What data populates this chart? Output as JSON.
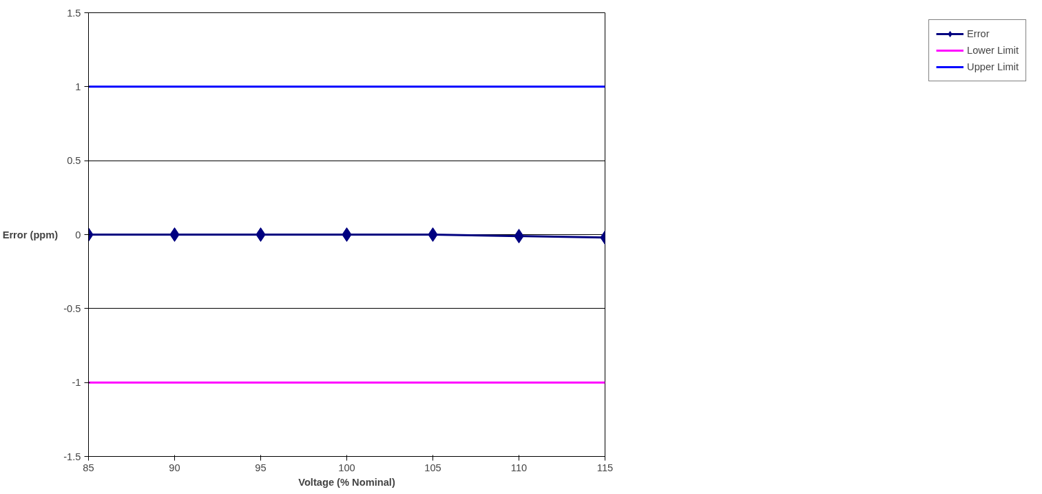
{
  "chart_data": {
    "type": "line",
    "xlabel": "Voltage (% Nominal)",
    "ylabel": "Error (ppm)",
    "x": [
      85,
      90,
      95,
      100,
      105,
      110,
      115
    ],
    "series": [
      {
        "name": "Error",
        "color": "#000080",
        "values": [
          0,
          0,
          0,
          0,
          0,
          -0.01,
          -0.02
        ],
        "marker": "diamond"
      },
      {
        "name": "Lower Limit",
        "color": "#ff00ff",
        "values": [
          -1,
          -1,
          -1,
          -1,
          -1,
          -1,
          -1
        ],
        "marker": "none"
      },
      {
        "name": "Upper Limit",
        "color": "#0000ff",
        "values": [
          1,
          1,
          1,
          1,
          1,
          1,
          1
        ],
        "marker": "none"
      }
    ],
    "xlim": [
      85,
      115
    ],
    "xticks": [
      85,
      90,
      95,
      100,
      105,
      110,
      115
    ],
    "ylim": [
      -1.5,
      1.5
    ],
    "yticks": [
      -1.5,
      -1,
      -0.5,
      0,
      0.5,
      1,
      1.5
    ],
    "grid": "y",
    "legend": "right",
    "line_style": "solid"
  }
}
